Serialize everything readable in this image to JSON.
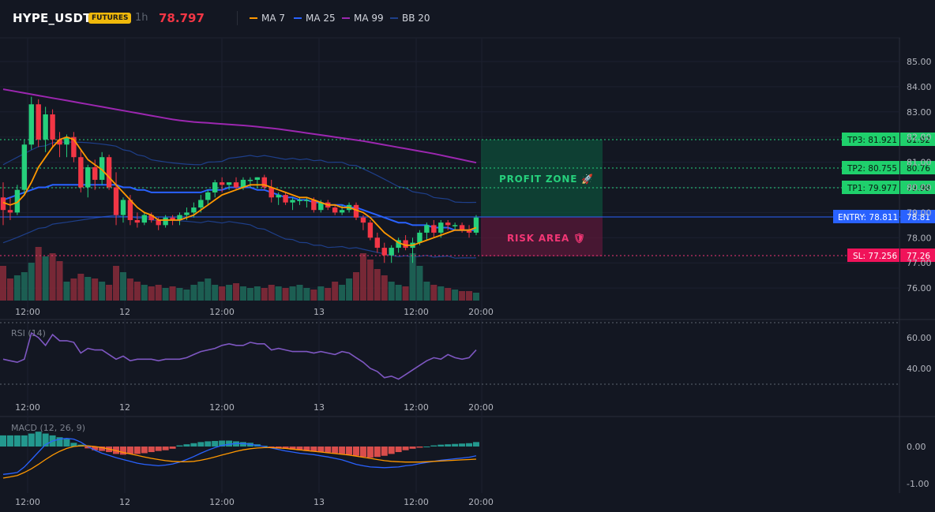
{
  "header": {
    "symbol": "HYPE_USDT",
    "badge": "FUTURES",
    "interval": "1h",
    "last_price": "78.797",
    "legend": [
      {
        "label": "MA 7",
        "color": "#ff9800"
      },
      {
        "label": "MA 25",
        "color": "#2962ff"
      },
      {
        "label": "MA 99",
        "color": "#9c27b0"
      },
      {
        "label": "BB 20",
        "color": "#1e3f8a"
      }
    ]
  },
  "price_axis": {
    "ticks": [
      "85.00",
      "84.00",
      "83.00",
      "82.00",
      "81.00",
      "80.00",
      "79.00",
      "78.00",
      "77.00",
      "76.00"
    ]
  },
  "time_axis": {
    "ticks": [
      "12:00",
      "12",
      "12:00",
      "13",
      "12:00",
      "20:00"
    ]
  },
  "trade_levels": {
    "tp3": {
      "label": "TP3: 81.921",
      "axis": "81.92",
      "price": 81.921
    },
    "tp2": {
      "label": "TP2: 80.755",
      "axis": "80.76",
      "price": 80.755
    },
    "tp1": {
      "label": "TP1: 79.977",
      "axis": "79.98",
      "price": 79.977
    },
    "entry": {
      "label": "ENTRY: 78.811",
      "axis": "78.81",
      "price": 78.811
    },
    "sl": {
      "label": "SL: 77.256",
      "axis": "77.26",
      "price": 77.256
    }
  },
  "zones": {
    "profit": "PROFIT ZONE 🚀",
    "risk": "RISK AREA 🛡"
  },
  "rsi": {
    "label": "RSI (14)",
    "ticks": [
      "60.00",
      "40.00"
    ]
  },
  "macd": {
    "label": "MACD (12, 26, 9)",
    "ticks": [
      "0.00",
      "-1.00"
    ]
  },
  "colors": {
    "up": "#26d07c",
    "down": "#f23645",
    "ma7": "#ff9800",
    "ma25": "#2962ff",
    "ma99": "#9c27b0",
    "bb": "#1e3f8a",
    "rsi": "#7e57c2"
  },
  "chart_data": {
    "type": "candlestick",
    "y_range": [
      75.5,
      85.6
    ],
    "candles": [
      [
        79.6,
        80.2,
        78.5,
        79.1
      ],
      [
        79.1,
        79.6,
        78.7,
        79.0
      ],
      [
        79.0,
        80.1,
        78.9,
        79.9
      ],
      [
        79.9,
        81.9,
        79.7,
        81.7
      ],
      [
        81.7,
        83.6,
        81.5,
        83.3
      ],
      [
        83.3,
        83.5,
        81.6,
        81.9
      ],
      [
        81.9,
        83.2,
        81.4,
        82.9
      ],
      [
        82.9,
        83.1,
        81.6,
        81.9
      ],
      [
        81.9,
        82.2,
        81.2,
        81.7
      ],
      [
        81.7,
        82.1,
        81.2,
        82.0
      ],
      [
        82.0,
        82.2,
        81.0,
        81.2
      ],
      [
        81.2,
        81.5,
        79.8,
        80.0
      ],
      [
        80.0,
        80.9,
        79.6,
        80.8
      ],
      [
        80.8,
        81.1,
        79.9,
        80.3
      ],
      [
        80.3,
        81.4,
        80.1,
        81.2
      ],
      [
        81.2,
        81.3,
        79.9,
        80.0
      ],
      [
        80.0,
        80.6,
        78.5,
        78.9
      ],
      [
        78.9,
        79.6,
        78.6,
        79.5
      ],
      [
        79.5,
        79.7,
        78.5,
        78.7
      ],
      [
        78.7,
        79.0,
        78.4,
        78.6
      ],
      [
        78.6,
        79.0,
        78.5,
        78.9
      ],
      [
        78.9,
        79.0,
        78.6,
        78.7
      ],
      [
        78.7,
        78.8,
        78.3,
        78.5
      ],
      [
        78.5,
        78.9,
        78.4,
        78.8
      ],
      [
        78.8,
        78.9,
        78.5,
        78.7
      ],
      [
        78.7,
        79.0,
        78.5,
        78.9
      ],
      [
        78.9,
        79.2,
        78.7,
        79.0
      ],
      [
        79.0,
        79.4,
        78.8,
        79.2
      ],
      [
        79.2,
        79.7,
        79.0,
        79.5
      ],
      [
        79.5,
        79.9,
        79.3,
        79.8
      ],
      [
        79.8,
        80.3,
        79.6,
        80.2
      ],
      [
        80.2,
        80.4,
        79.8,
        80.1
      ],
      [
        80.1,
        80.2,
        79.9,
        80.2
      ],
      [
        80.2,
        80.4,
        79.9,
        80.0
      ],
      [
        80.0,
        80.4,
        79.9,
        80.3
      ],
      [
        80.3,
        80.4,
        80.0,
        80.3
      ],
      [
        80.3,
        80.4,
        80.0,
        80.4
      ],
      [
        80.4,
        80.5,
        79.9,
        80.0
      ],
      [
        80.0,
        80.3,
        79.4,
        79.6
      ],
      [
        79.6,
        79.8,
        79.3,
        79.7
      ],
      [
        79.7,
        79.8,
        79.3,
        79.4
      ],
      [
        79.4,
        79.6,
        79.1,
        79.5
      ],
      [
        79.5,
        79.6,
        79.3,
        79.5
      ],
      [
        79.5,
        79.6,
        79.2,
        79.5
      ],
      [
        79.5,
        79.6,
        79.0,
        79.1
      ],
      [
        79.1,
        79.5,
        79.0,
        79.4
      ],
      [
        79.4,
        79.5,
        79.1,
        79.2
      ],
      [
        79.2,
        79.3,
        78.9,
        79.0
      ],
      [
        79.0,
        79.3,
        78.9,
        79.1
      ],
      [
        79.1,
        79.4,
        79.0,
        79.3
      ],
      [
        79.3,
        79.4,
        78.7,
        78.8
      ],
      [
        78.8,
        78.9,
        78.3,
        78.6
      ],
      [
        78.6,
        78.7,
        77.9,
        78.0
      ],
      [
        78.0,
        78.2,
        77.4,
        77.6
      ],
      [
        77.6,
        77.8,
        77.0,
        77.3
      ],
      [
        77.3,
        77.7,
        77.0,
        77.6
      ],
      [
        77.6,
        78.0,
        77.4,
        77.9
      ],
      [
        77.9,
        78.1,
        77.5,
        77.6
      ],
      [
        77.6,
        78.0,
        77.0,
        77.8
      ],
      [
        77.8,
        78.3,
        77.7,
        78.2
      ],
      [
        78.2,
        78.6,
        77.9,
        78.5
      ],
      [
        78.5,
        78.7,
        78.0,
        78.2
      ],
      [
        78.2,
        78.7,
        78.0,
        78.6
      ],
      [
        78.6,
        78.7,
        78.3,
        78.5
      ],
      [
        78.5,
        78.6,
        78.3,
        78.5
      ],
      [
        78.5,
        78.6,
        78.2,
        78.3
      ],
      [
        78.3,
        78.5,
        78.0,
        78.2
      ],
      [
        78.2,
        78.9,
        78.1,
        78.8
      ]
    ],
    "volume": [
      22,
      14,
      16,
      18,
      24,
      34,
      28,
      30,
      25,
      12,
      14,
      17,
      15,
      14,
      12,
      10,
      22,
      18,
      14,
      12,
      10,
      9,
      10,
      8,
      9,
      8,
      7,
      10,
      12,
      14,
      10,
      9,
      10,
      11,
      9,
      8,
      9,
      8,
      10,
      9,
      8,
      9,
      10,
      8,
      7,
      9,
      8,
      12,
      10,
      14,
      18,
      30,
      26,
      20,
      16,
      12,
      10,
      9,
      30,
      22,
      12,
      10,
      9,
      8,
      7,
      6,
      6,
      5
    ],
    "ma7": [
      79.4,
      79.3,
      79.4,
      79.7,
      80.2,
      80.8,
      81.2,
      81.6,
      81.9,
      82.0,
      81.9,
      81.5,
      81.1,
      80.9,
      80.7,
      80.4,
      80.1,
      79.8,
      79.5,
      79.2,
      79.0,
      78.9,
      78.7,
      78.7,
      78.7,
      78.7,
      78.8,
      78.9,
      79.1,
      79.3,
      79.5,
      79.7,
      79.8,
      79.9,
      80.0,
      80.1,
      80.1,
      80.1,
      80.0,
      79.9,
      79.8,
      79.7,
      79.6,
      79.6,
      79.5,
      79.4,
      79.3,
      79.3,
      79.2,
      79.2,
      79.1,
      79.0,
      78.8,
      78.5,
      78.2,
      78.0,
      77.8,
      77.7,
      77.7,
      77.8,
      77.9,
      78.0,
      78.1,
      78.2,
      78.3,
      78.3,
      78.3,
      78.4
    ],
    "ma25": [
      79.5,
      79.6,
      79.7,
      79.8,
      79.9,
      80.0,
      80.0,
      80.1,
      80.1,
      80.1,
      80.1,
      80.1,
      80.1,
      80.1,
      80.1,
      80.1,
      80.1,
      80.0,
      80.0,
      79.9,
      79.9,
      79.8,
      79.8,
      79.8,
      79.8,
      79.8,
      79.8,
      79.8,
      79.8,
      79.9,
      79.9,
      79.9,
      80.0,
      80.0,
      80.0,
      80.0,
      79.9,
      79.9,
      79.8,
      79.7,
      79.6,
      79.6,
      79.5,
      79.5,
      79.4,
      79.4,
      79.3,
      79.3,
      79.3,
      79.2,
      79.2,
      79.1,
      79.0,
      78.9,
      78.8,
      78.7,
      78.6,
      78.6,
      78.5,
      78.5,
      78.5,
      78.4,
      78.4,
      78.4,
      78.3,
      78.3,
      78.3,
      78.3
    ],
    "ma99": [
      83.9,
      83.85,
      83.8,
      83.75,
      83.7,
      83.65,
      83.6,
      83.55,
      83.5,
      83.45,
      83.4,
      83.35,
      83.3,
      83.25,
      83.2,
      83.15,
      83.1,
      83.05,
      83.0,
      82.95,
      82.9,
      82.85,
      82.8,
      82.75,
      82.7,
      82.66,
      82.63,
      82.6,
      82.58,
      82.56,
      82.54,
      82.52,
      82.5,
      82.48,
      82.46,
      82.44,
      82.41,
      82.38,
      82.35,
      82.32,
      82.28,
      82.24,
      82.2,
      82.16,
      82.12,
      82.08,
      82.04,
      82.0,
      81.96,
      81.92,
      81.88,
      81.84,
      81.79,
      81.74,
      81.69,
      81.64,
      81.59,
      81.54,
      81.49,
      81.44,
      81.39,
      81.34,
      81.28,
      81.22,
      81.16,
      81.1,
      81.04,
      80.98
    ],
    "rsi": [
      46,
      45,
      44,
      46,
      63,
      60,
      55,
      62,
      58,
      58,
      57,
      50,
      53,
      52,
      52,
      49,
      46,
      48,
      45,
      46,
      46,
      46,
      45,
      46,
      46,
      46,
      47,
      49,
      51,
      52,
      53,
      55,
      56,
      55,
      55,
      57,
      56,
      56,
      52,
      53,
      52,
      51,
      51,
      51,
      50,
      51,
      50,
      49,
      51,
      50,
      47,
      44,
      40,
      38,
      34,
      35,
      33,
      36,
      39,
      42,
      45,
      47,
      46,
      49,
      47,
      46,
      47,
      52
    ],
    "macd_hist": [
      0.3,
      0.3,
      0.3,
      0.3,
      0.35,
      0.4,
      0.35,
      0.3,
      0.25,
      0.2,
      0.1,
      0.05,
      -0.05,
      -0.1,
      -0.12,
      -0.15,
      -0.2,
      -0.22,
      -0.2,
      -0.2,
      -0.18,
      -0.15,
      -0.12,
      -0.1,
      -0.06,
      0.03,
      0.06,
      0.09,
      0.12,
      0.14,
      0.15,
      0.16,
      0.16,
      0.14,
      0.12,
      0.1,
      0.06,
      0.02,
      -0.02,
      -0.05,
      -0.06,
      -0.08,
      -0.1,
      -0.12,
      -0.14,
      -0.15,
      -0.16,
      -0.18,
      -0.2,
      -0.22,
      -0.25,
      -0.28,
      -0.3,
      -0.28,
      -0.25,
      -0.2,
      -0.15,
      -0.1,
      -0.06,
      -0.03,
      0.0,
      0.03,
      0.05,
      0.06,
      0.07,
      0.08,
      0.09,
      0.12
    ],
    "macd_line": [
      -0.75,
      -0.73,
      -0.7,
      -0.55,
      -0.35,
      -0.15,
      0.05,
      0.15,
      0.2,
      0.22,
      0.2,
      0.12,
      0.0,
      -0.1,
      -0.18,
      -0.24,
      -0.3,
      -0.35,
      -0.4,
      -0.45,
      -0.48,
      -0.5,
      -0.52,
      -0.5,
      -0.47,
      -0.42,
      -0.35,
      -0.27,
      -0.18,
      -0.1,
      -0.03,
      0.03,
      0.06,
      0.08,
      0.08,
      0.06,
      0.03,
      0.0,
      -0.04,
      -0.08,
      -0.12,
      -0.15,
      -0.18,
      -0.2,
      -0.22,
      -0.25,
      -0.28,
      -0.32,
      -0.36,
      -0.42,
      -0.48,
      -0.52,
      -0.55,
      -0.56,
      -0.57,
      -0.56,
      -0.55,
      -0.52,
      -0.5,
      -0.46,
      -0.43,
      -0.4,
      -0.37,
      -0.35,
      -0.33,
      -0.31,
      -0.29,
      -0.25
    ],
    "signal_line": [
      -0.85,
      -0.82,
      -0.78,
      -0.7,
      -0.6,
      -0.48,
      -0.35,
      -0.23,
      -0.13,
      -0.05,
      0.0,
      0.02,
      0.02,
      0.0,
      -0.03,
      -0.07,
      -0.11,
      -0.16,
      -0.2,
      -0.24,
      -0.28,
      -0.32,
      -0.35,
      -0.38,
      -0.4,
      -0.41,
      -0.41,
      -0.4,
      -0.37,
      -0.33,
      -0.28,
      -0.23,
      -0.18,
      -0.13,
      -0.09,
      -0.06,
      -0.04,
      -0.03,
      -0.03,
      -0.04,
      -0.05,
      -0.07,
      -0.09,
      -0.11,
      -0.13,
      -0.15,
      -0.17,
      -0.19,
      -0.21,
      -0.23,
      -0.26,
      -0.29,
      -0.32,
      -0.35,
      -0.38,
      -0.4,
      -0.41,
      -0.42,
      -0.42,
      -0.42,
      -0.41,
      -0.4,
      -0.39,
      -0.38,
      -0.37,
      -0.36,
      -0.35,
      -0.34
    ]
  }
}
